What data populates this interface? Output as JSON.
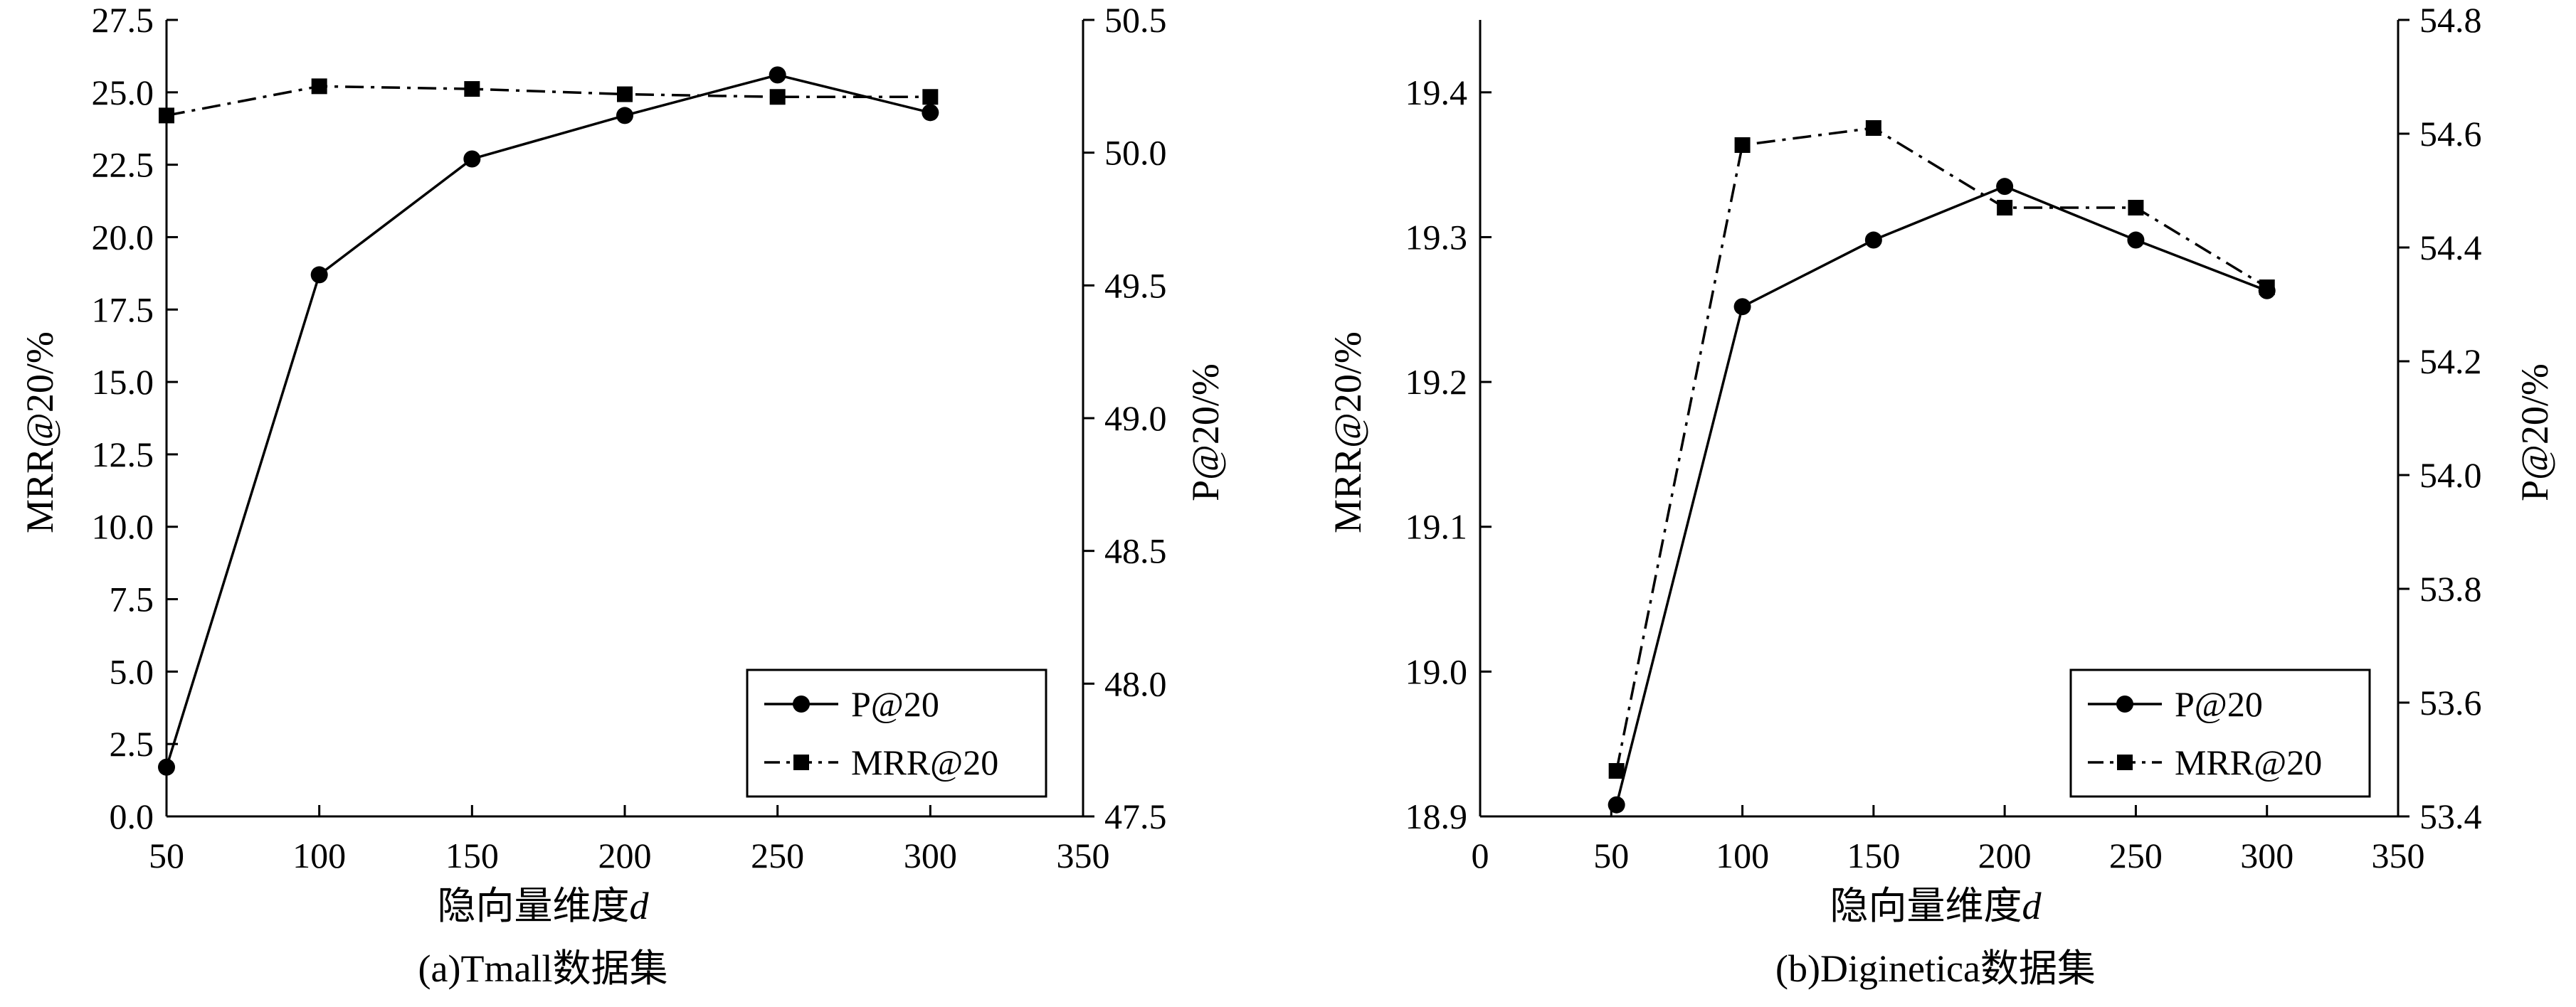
{
  "chart_data": [
    {
      "type": "line",
      "caption": "(a)Tmall数据集",
      "xlabel_prefix": "隐向量维度",
      "xlabel_var": "d",
      "ylabel_left": "MRR@20/%",
      "ylabel_right": "P@20/%",
      "xlim": [
        50,
        350
      ],
      "xticks": [
        "50",
        "100",
        "150",
        "200",
        "250",
        "300",
        "350"
      ],
      "ylim_left": [
        0,
        27.5
      ],
      "yticks_left": [
        "0.0",
        "2.5",
        "5.0",
        "7.5",
        "10.0",
        "12.5",
        "15.0",
        "17.5",
        "20.0",
        "22.5",
        "25.0",
        "27.5"
      ],
      "ylim_right": [
        47.5,
        50.5
      ],
      "yticks_right": [
        "47.5",
        "48.0",
        "48.5",
        "49.0",
        "49.5",
        "50.0",
        "50.5"
      ],
      "x": [
        50,
        100,
        150,
        200,
        250,
        300
      ],
      "series": [
        {
          "name": "P@20",
          "axis": "left",
          "marker": "circle",
          "dash": "solid",
          "values": [
            1.7,
            18.7,
            22.7,
            24.2,
            25.6,
            24.3
          ]
        },
        {
          "name": "MRR@20",
          "axis": "right",
          "marker": "square",
          "dash": "dashdot",
          "values": [
            50.14,
            50.25,
            50.24,
            50.22,
            50.21,
            50.21
          ]
        }
      ],
      "legend_position": "bottom-right",
      "grid": false
    },
    {
      "type": "line",
      "caption": "(b)Diginetica数据集",
      "xlabel_prefix": "隐向量维度",
      "xlabel_var": "d",
      "ylabel_left": "MRR@20/%",
      "ylabel_right": "P@20/%",
      "xlim": [
        0,
        350
      ],
      "xticks": [
        "0",
        "50",
        "100",
        "150",
        "200",
        "250",
        "300",
        "350"
      ],
      "ylim_left": [
        18.9,
        19.45
      ],
      "yticks_left": [
        "18.9",
        "19.0",
        "19.1",
        "19.2",
        "19.3",
        "19.4"
      ],
      "ylim_right": [
        53.4,
        54.8
      ],
      "yticks_right": [
        "53.4",
        "53.6",
        "53.8",
        "54.0",
        "54.2",
        "54.4",
        "54.6",
        "54.8"
      ],
      "x": [
        52,
        100,
        150,
        200,
        250,
        300
      ],
      "series": [
        {
          "name": "P@20",
          "axis": "left",
          "marker": "circle",
          "dash": "solid",
          "values": [
            18.908,
            19.252,
            19.298,
            19.335,
            19.298,
            19.263
          ]
        },
        {
          "name": "MRR@20",
          "axis": "right",
          "marker": "square",
          "dash": "dashdot",
          "values": [
            53.48,
            54.58,
            54.61,
            54.47,
            54.47,
            54.33
          ]
        }
      ],
      "legend_position": "bottom-right",
      "grid": false
    }
  ]
}
